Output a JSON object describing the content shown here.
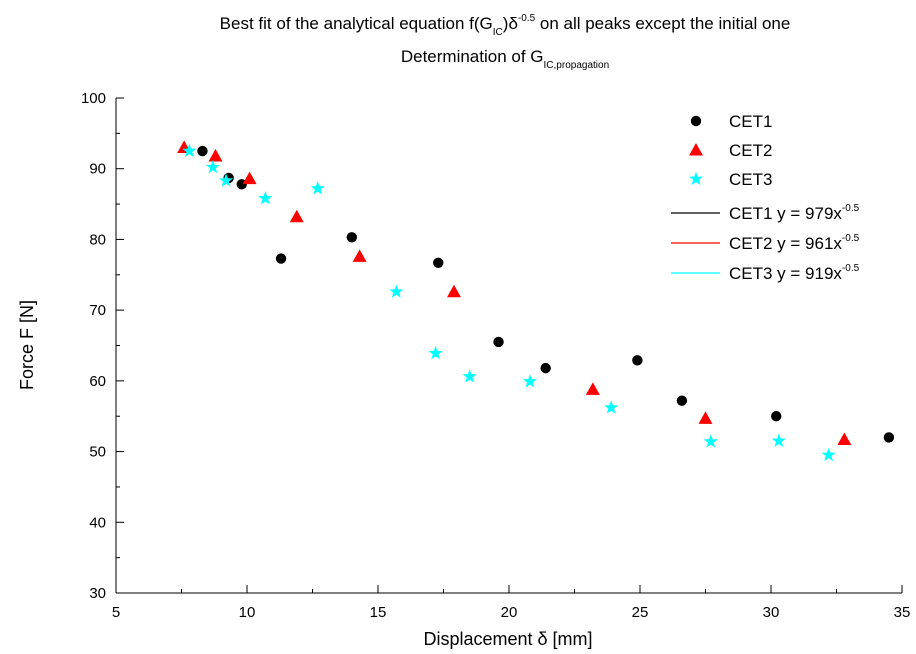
{
  "chart_data": {
    "type": "scatter",
    "title": {
      "line1": {
        "a": "Best fit of the analytical equation f(G",
        "sub": "IC",
        "b": ")δ",
        "sup": "-0.5",
        "c": " on all peaks except the initial one"
      },
      "line2": {
        "a": "Determination of G",
        "sub": "IC,propagation"
      }
    },
    "xlabel": "Displacement δ [mm]",
    "ylabel": "Force F [N]",
    "xlim": [
      5,
      35
    ],
    "ylim": [
      30,
      100
    ],
    "xticks": [
      5,
      10,
      15,
      20,
      25,
      30,
      35
    ],
    "yticks": [
      30,
      40,
      50,
      60,
      70,
      80,
      90,
      100
    ],
    "grid": false,
    "legend_position": "top-right",
    "series": [
      {
        "name": "CET1",
        "marker": "circle",
        "color": "#000000",
        "x": [
          8.3,
          9.3,
          9.8,
          11.3,
          14.0,
          17.3,
          19.6,
          21.4,
          24.9,
          26.6,
          30.2,
          34.5
        ],
        "y": [
          92.5,
          88.7,
          87.8,
          77.3,
          80.3,
          76.7,
          65.5,
          61.8,
          62.9,
          57.2,
          55.0,
          52.0
        ]
      },
      {
        "name": "CET2",
        "marker": "triangle",
        "color": "#ff0000",
        "x": [
          7.6,
          8.8,
          10.1,
          11.9,
          14.3,
          17.9,
          23.2,
          27.5,
          32.8
        ],
        "y": [
          93.0,
          91.8,
          88.6,
          83.2,
          77.6,
          72.6,
          58.8,
          54.7,
          51.7
        ]
      },
      {
        "name": "CET3",
        "marker": "star",
        "color": "#00ffff",
        "x": [
          7.8,
          8.7,
          9.2,
          10.7,
          12.7,
          15.7,
          17.2,
          18.5,
          20.8,
          23.9,
          27.7,
          30.3,
          32.2
        ],
        "y": [
          92.5,
          90.2,
          88.3,
          85.8,
          87.2,
          72.6,
          63.9,
          60.6,
          59.9,
          56.2,
          51.4,
          51.5,
          49.5
        ]
      }
    ],
    "fits": [
      {
        "name": "CET1",
        "coefficient": 979,
        "exponent": -0.5,
        "color": "#000000"
      },
      {
        "name": "CET2",
        "coefficient": 961,
        "exponent": -0.5,
        "color": "#ff0000"
      },
      {
        "name": "CET3",
        "coefficient": 919,
        "exponent": -0.5,
        "color": "#00ffff"
      }
    ],
    "legend": {
      "markers": [
        "CET1",
        "CET2",
        "CET3"
      ],
      "lines": [
        {
          "label": "CET1 y = 979x",
          "sup": "-0.5"
        },
        {
          "label": "CET2 y = 961x",
          "sup": "-0.5"
        },
        {
          "label": "CET3 y = 919x",
          "sup": "-0.5"
        }
      ]
    }
  }
}
